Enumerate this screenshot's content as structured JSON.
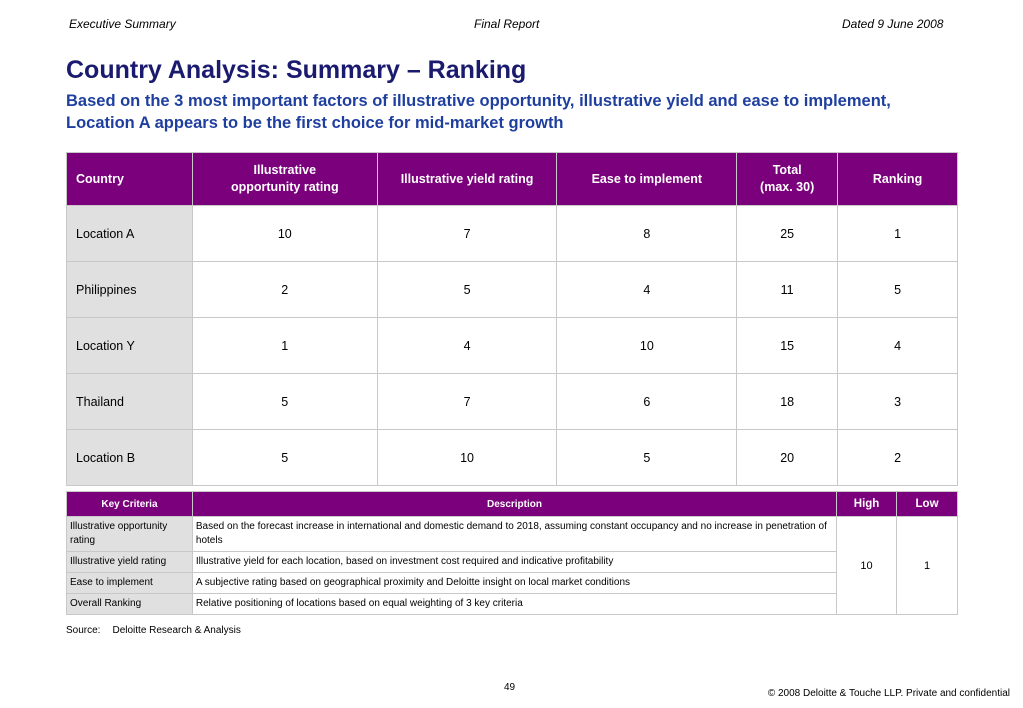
{
  "header": {
    "left": "Executive Summary",
    "center": "Final Report",
    "right": "Dated 9 June 2008"
  },
  "title": "Country Analysis: Summary – Ranking",
  "subtitle": "Based on the 3 most important factors of illustrative opportunity, illustrative yield and ease to implement, Location A appears to be the first choice for mid-market growth",
  "ranking_table": {
    "headers": {
      "country": "Country",
      "opportunity_line1": "Illustrative",
      "opportunity_line2": "opportunity rating",
      "yield": "Illustrative yield rating",
      "ease": "Ease to implement",
      "total_line1": "Total",
      "total_line2": "(max. 30)",
      "ranking": "Ranking"
    },
    "rows": [
      {
        "country": "Location A",
        "opportunity": "10",
        "yield": "7",
        "ease": "8",
        "total": "25",
        "ranking": "1"
      },
      {
        "country": "Philippines",
        "opportunity": "2",
        "yield": "5",
        "ease": "4",
        "total": "11",
        "ranking": "5"
      },
      {
        "country": "Location Y",
        "opportunity": "1",
        "yield": "4",
        "ease": "10",
        "total": "15",
        "ranking": "4"
      },
      {
        "country": "Thailand",
        "opportunity": "5",
        "yield": "7",
        "ease": "6",
        "total": "18",
        "ranking": "3"
      },
      {
        "country": "Location B",
        "opportunity": "5",
        "yield": "10",
        "ease": "5",
        "total": "20",
        "ranking": "2"
      }
    ]
  },
  "criteria_table": {
    "headers": {
      "key": "Key Criteria",
      "description": "Description",
      "high": "High",
      "low": "Low"
    },
    "rows": [
      {
        "key": "Illustrative opportunity rating",
        "description": "Based on the forecast increase in international and domestic demand to 2018, assuming constant occupancy and no increase in penetration of hotels"
      },
      {
        "key": "Illustrative yield rating",
        "description": "Illustrative yield for each location, based on investment cost required and indicative profitability"
      },
      {
        "key": "Ease to implement",
        "description": "A subjective rating based on geographical proximity and Deloitte insight on local market conditions"
      },
      {
        "key": "Overall Ranking",
        "description": "Relative positioning of locations based on equal weighting of 3 key criteria"
      }
    ],
    "high_value": "10",
    "low_value": "1"
  },
  "source": {
    "label": "Source:",
    "text": "Deloitte Research & Analysis"
  },
  "footer": {
    "page_number": "49",
    "copyright": "© 2008 Deloitte & Touche LLP. Private and confidential"
  },
  "colors": {
    "header_purple": "#7b007b",
    "title_navy": "#1a1a6e",
    "subtitle_blue": "#1f3f9f",
    "label_gray": "#e0e0e0"
  }
}
